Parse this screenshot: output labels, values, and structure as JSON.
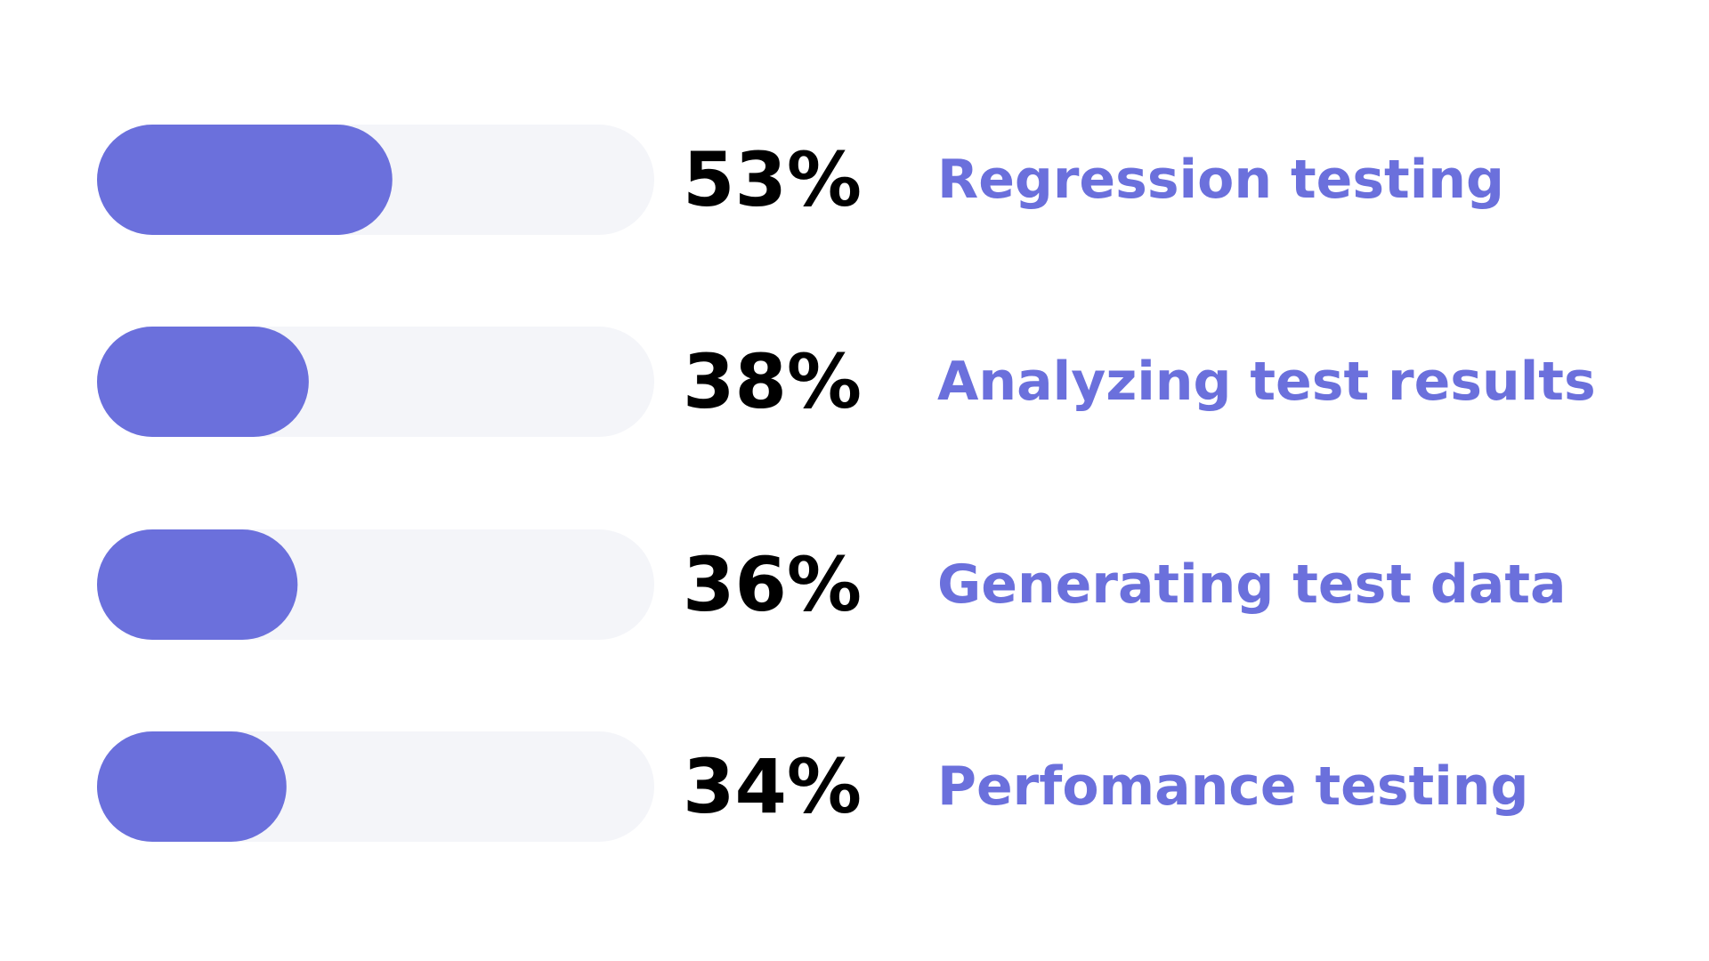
{
  "chart_data": {
    "type": "bar",
    "orientation": "horizontal",
    "categories": [
      "Regression testing",
      "Analyzing test results",
      "Generating test data",
      "Perfomance testing"
    ],
    "values": [
      53,
      38,
      36,
      34
    ],
    "value_labels": [
      "53%",
      "38%",
      "36%",
      "34%"
    ],
    "xlim": [
      0,
      100
    ],
    "color": "#6b70dc",
    "track_color": "#f4f5f9",
    "label_color": "#6b70dc"
  }
}
